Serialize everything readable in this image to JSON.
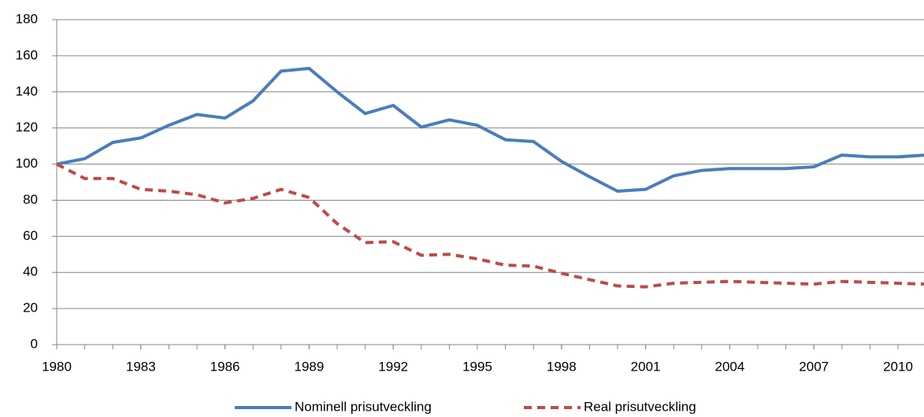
{
  "chart_data": {
    "type": "line",
    "x": [
      1980,
      1981,
      1982,
      1983,
      1984,
      1985,
      1986,
      1987,
      1988,
      1989,
      1990,
      1991,
      1992,
      1993,
      1994,
      1995,
      1996,
      1997,
      1998,
      1999,
      2000,
      2001,
      2002,
      2003,
      2004,
      2005,
      2006,
      2007,
      2008,
      2009,
      2010,
      2011
    ],
    "series": [
      {
        "name": "Nominell prisutveckling",
        "color": "#4a7ebb",
        "line_style": "solid",
        "values": [
          100,
          103,
          112,
          114.5,
          121.5,
          127.5,
          125.5,
          135,
          151.5,
          153,
          140,
          128,
          132.5,
          120.5,
          124.5,
          121.5,
          113.5,
          112.5,
          101.5,
          93,
          85,
          86,
          93.5,
          96.5,
          97.5,
          97.5,
          97.5,
          98.5,
          105,
          104,
          104,
          105
        ]
      },
      {
        "name": "Real prisutveckling",
        "color": "#be4b48",
        "line_style": "dashed",
        "values": [
          100,
          92,
          92,
          86,
          85,
          83,
          78.5,
          81,
          86,
          81.5,
          67,
          56.5,
          57,
          49.5,
          50,
          47.5,
          44,
          43.5,
          39.5,
          36,
          32.5,
          32,
          34,
          34.5,
          35,
          34.5,
          34,
          33.5,
          35,
          34.5,
          34,
          33.5
        ]
      }
    ],
    "xlim": [
      1980,
      2011
    ],
    "xticks": [
      1980,
      1983,
      1986,
      1989,
      1992,
      1995,
      1998,
      2001,
      2004,
      2007,
      2010
    ],
    "ylim": [
      0,
      180
    ],
    "yticks": [
      0,
      20,
      40,
      60,
      80,
      100,
      120,
      140,
      160,
      180
    ],
    "grid": true,
    "legend": "bottom"
  }
}
